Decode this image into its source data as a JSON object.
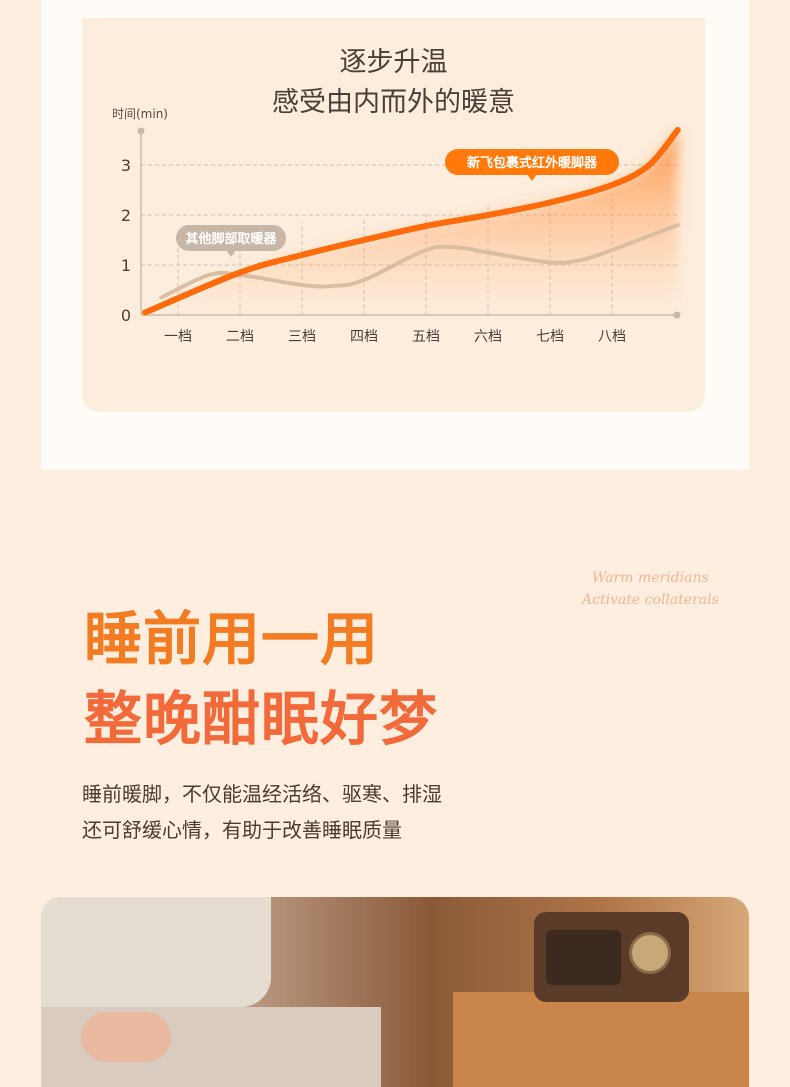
{
  "chart_section": {
    "title_line1": "逐步升温",
    "title_line2": "感受由内而外的暖意"
  },
  "chart_data": {
    "type": "line",
    "ylabel": "时间(min)",
    "yticks": [
      "0",
      "1",
      "2",
      "3"
    ],
    "ylim": [
      0,
      3.7
    ],
    "categories": [
      "一档",
      "二档",
      "三档",
      "四档",
      "五档",
      "六档",
      "七档",
      "八档"
    ],
    "grid": true,
    "series": [
      {
        "name": "新飞包裹式红外暖脚器",
        "color": "#ff6a0a",
        "x": [
          0.47,
          2,
          3,
          4,
          5,
          6,
          7,
          8,
          8.6,
          9.06
        ],
        "values": [
          0.05,
          0.85,
          1.2,
          1.5,
          1.78,
          2.0,
          2.25,
          2.6,
          3.0,
          3.7
        ]
      },
      {
        "name": "其他脚部取暖器",
        "color": "#d9bea0",
        "x": [
          0.73,
          1.5,
          2,
          3,
          3.5,
          4,
          5,
          5.5,
          6,
          7,
          7.5,
          8,
          9.06
        ],
        "values": [
          0.35,
          0.8,
          0.8,
          0.6,
          0.58,
          0.7,
          1.3,
          1.35,
          1.25,
          1.05,
          1.1,
          1.3,
          1.8
        ]
      }
    ]
  },
  "promo": {
    "headline1": "睡前用一用",
    "headline2": "整晚酣眠好梦",
    "desc1": "睡前暖脚，不仅能温经活络、驱寒、排湿",
    "desc2": "还可舒缓心情，有助于改善睡眠质量",
    "en1": "Warm meridians",
    "en2": "Activate collaterals"
  }
}
